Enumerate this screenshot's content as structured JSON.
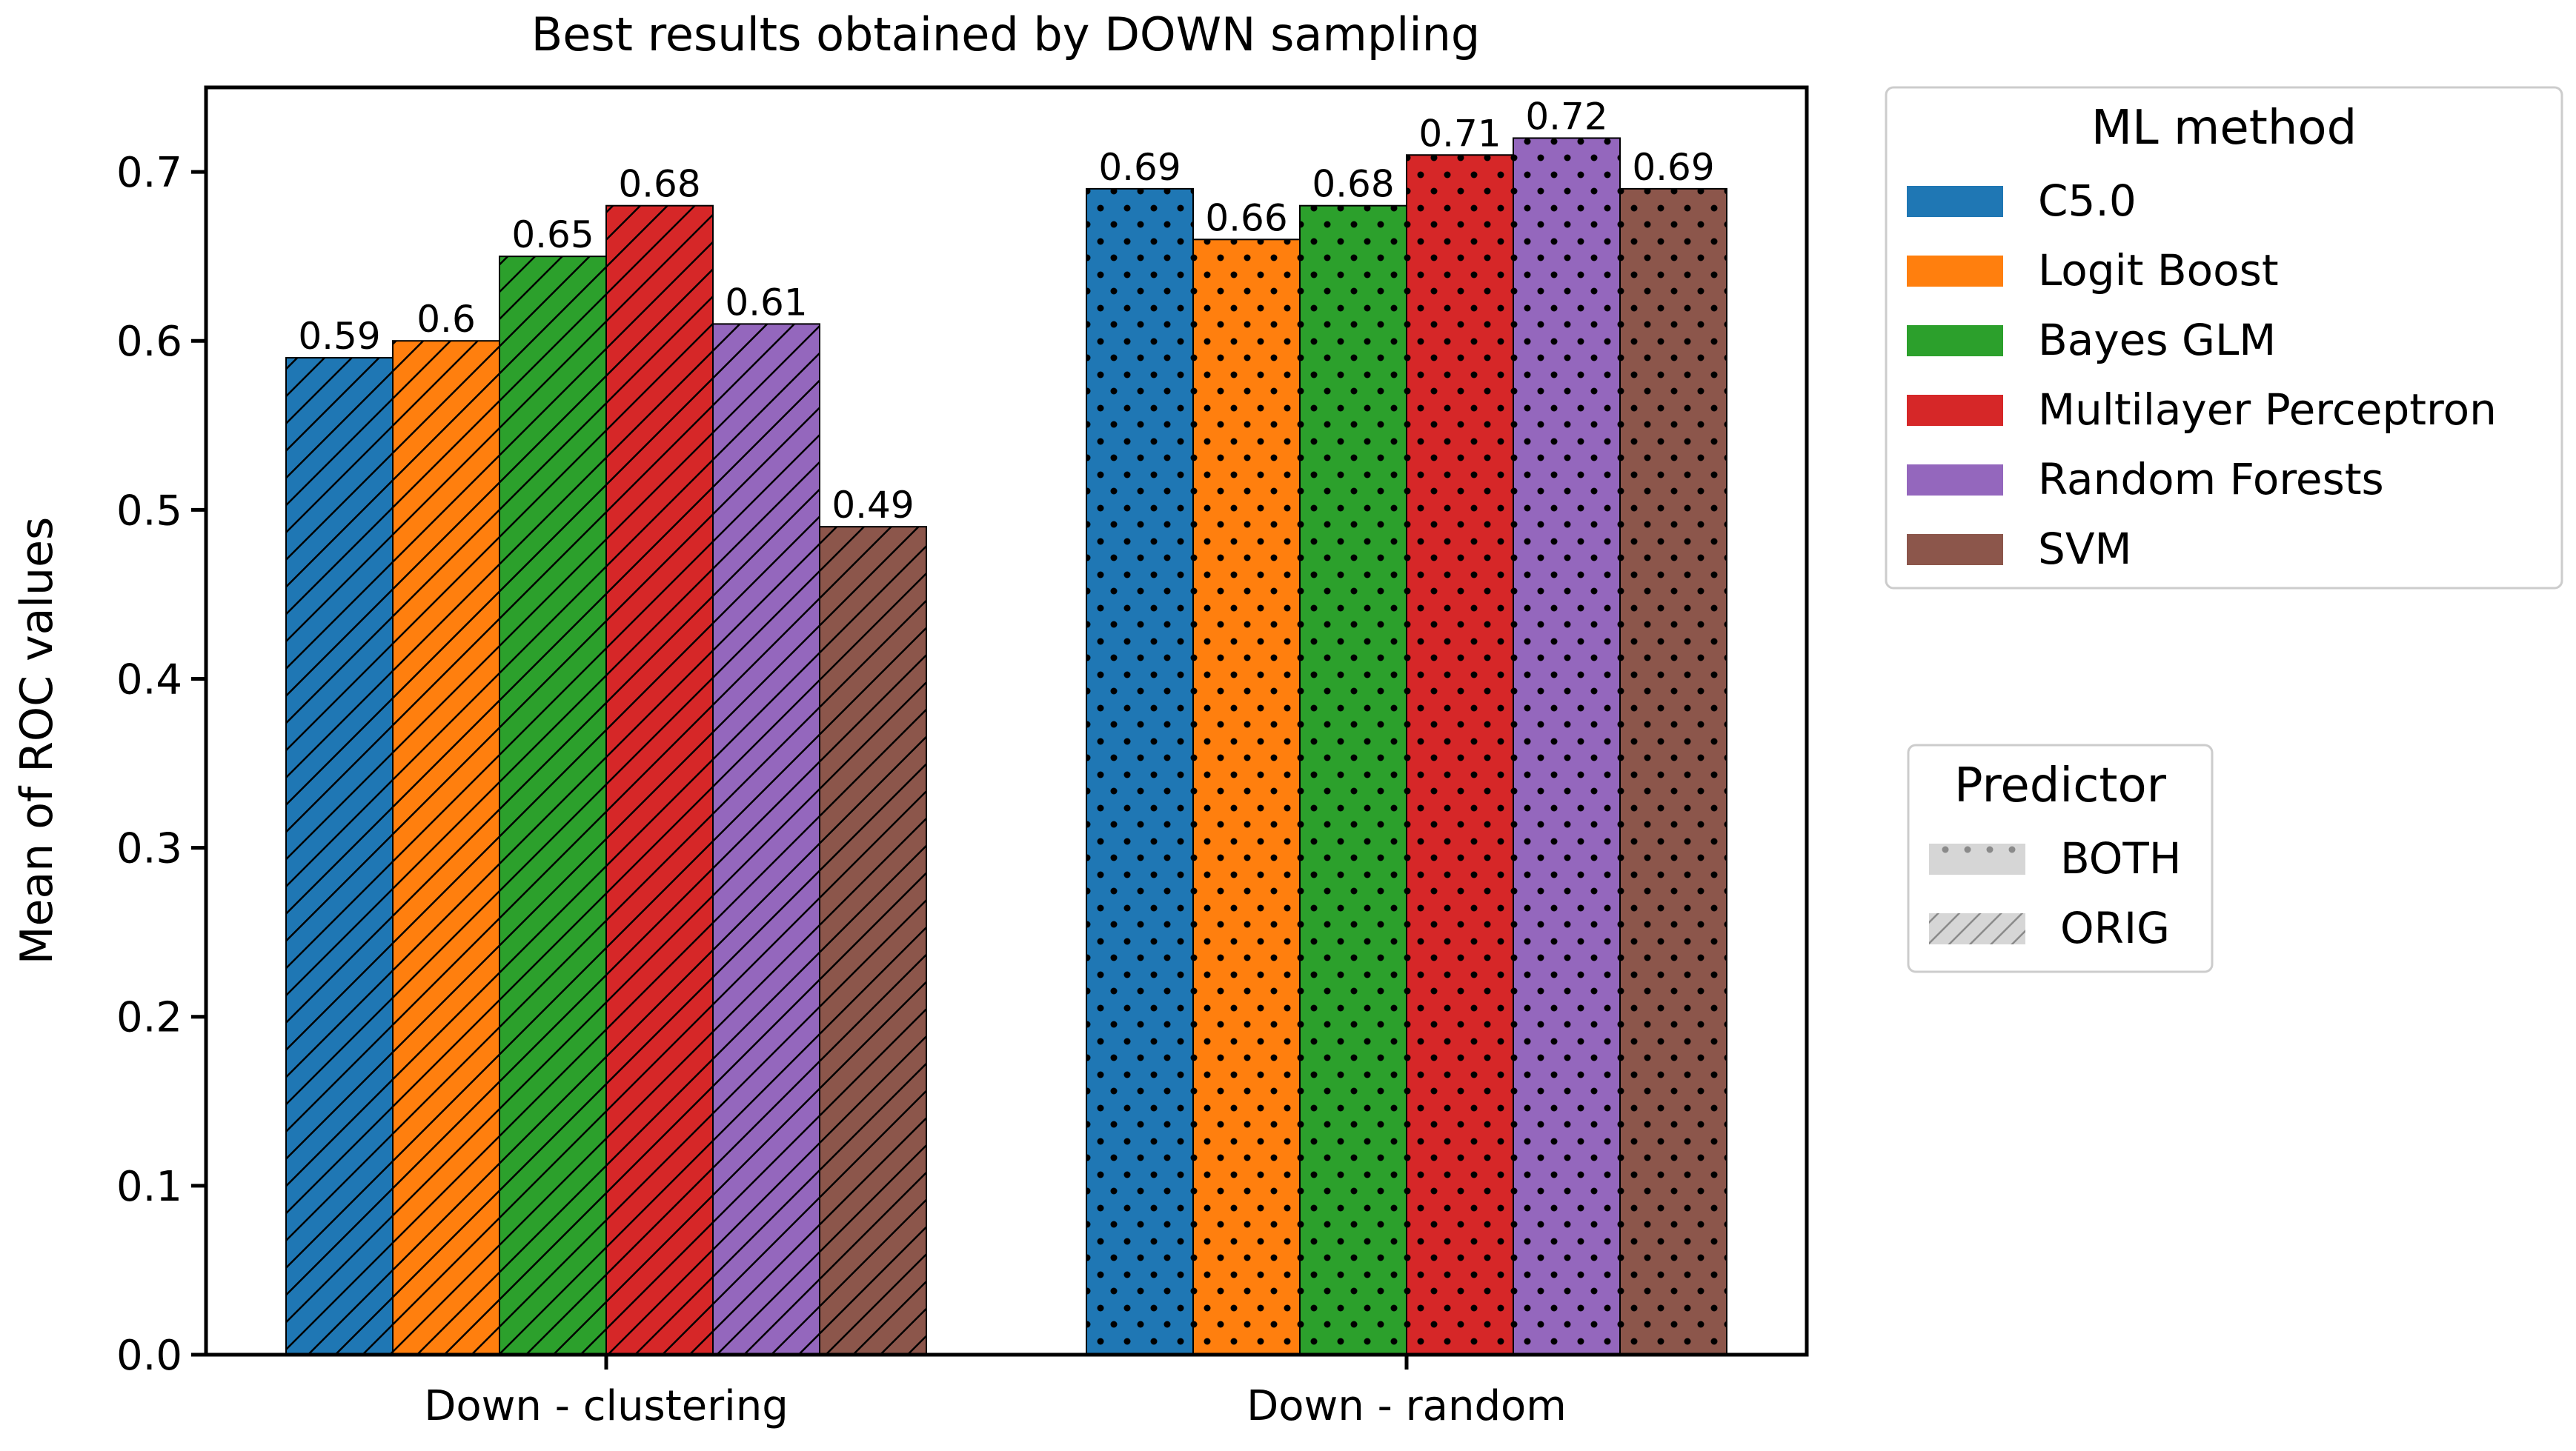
{
  "chart_data": {
    "type": "bar",
    "title": "Best results obtained by DOWN sampling",
    "xlabel": "",
    "ylabel": "Mean of ROC values",
    "ylim": [
      0,
      0.75
    ],
    "yticks": [
      0.0,
      0.1,
      0.2,
      0.3,
      0.4,
      0.5,
      0.6,
      0.7
    ],
    "ytick_labels": [
      "0.0",
      "0.1",
      "0.2",
      "0.3",
      "0.4",
      "0.5",
      "0.6",
      "0.7"
    ],
    "grid": false,
    "categories": [
      "Down - clustering",
      "Down - random"
    ],
    "category_predictor": [
      "ORIG",
      "BOTH"
    ],
    "series": [
      {
        "name": "C5.0",
        "color": "#1f77b4",
        "values": [
          0.59,
          0.69
        ],
        "labels": [
          "0.59",
          "0.69"
        ]
      },
      {
        "name": "Logit Boost",
        "color": "#ff7f0e",
        "values": [
          0.6,
          0.66
        ],
        "labels": [
          "0.6",
          "0.66"
        ]
      },
      {
        "name": "Bayes GLM",
        "color": "#2ca02c",
        "values": [
          0.65,
          0.68
        ],
        "labels": [
          "0.65",
          "0.68"
        ]
      },
      {
        "name": "Multilayer Perceptron",
        "color": "#d62728",
        "values": [
          0.68,
          0.71
        ],
        "labels": [
          "0.68",
          "0.71"
        ]
      },
      {
        "name": "Random Forests",
        "color": "#9467bd",
        "values": [
          0.61,
          0.72
        ],
        "labels": [
          "0.61",
          "0.72"
        ]
      },
      {
        "name": "SVM",
        "color": "#8c564b",
        "values": [
          0.49,
          0.69
        ],
        "labels": [
          "0.49",
          "0.69"
        ]
      }
    ],
    "legend_method": {
      "title": "ML method",
      "placement": "upper-right-outside"
    },
    "legend_predictor": {
      "title": "Predictor",
      "placement": "right-outside",
      "entries": [
        {
          "name": "BOTH",
          "pattern": "dots"
        },
        {
          "name": "ORIG",
          "pattern": "hatch"
        }
      ]
    }
  }
}
